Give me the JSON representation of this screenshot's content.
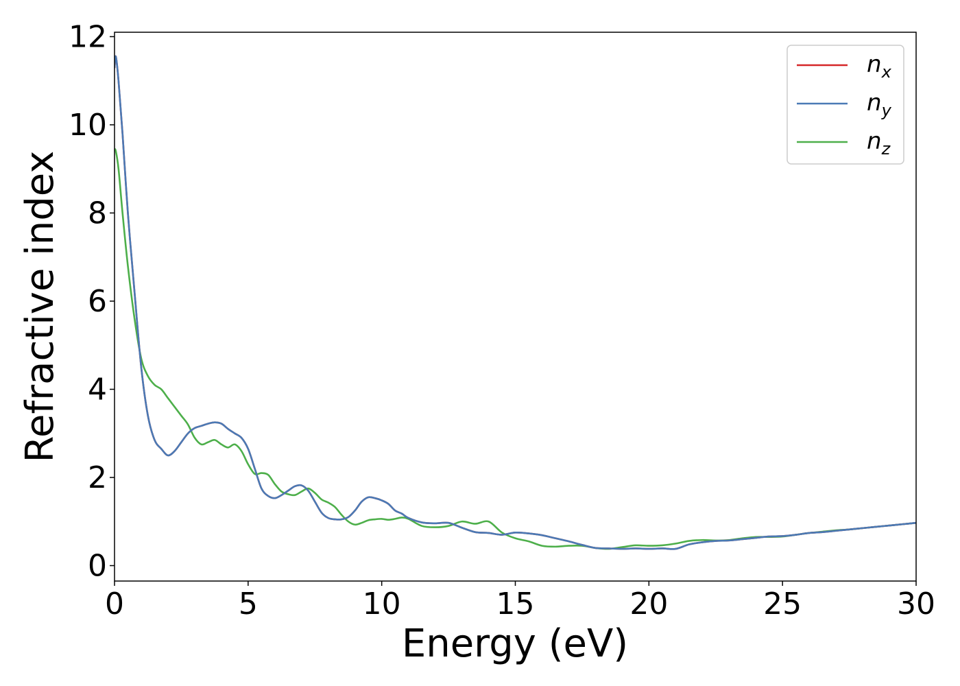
{
  "chart_data": {
    "type": "line",
    "title": "",
    "xlabel": "Energy (eV)",
    "ylabel": "Refractive index",
    "xlim": [
      0,
      30
    ],
    "ylim": [
      -0.35,
      12.1
    ],
    "x_ticks": [
      0,
      5,
      10,
      15,
      20,
      25,
      30
    ],
    "y_ticks": [
      0,
      2,
      4,
      6,
      8,
      10,
      12
    ],
    "grid": false,
    "legend_position": "top-right",
    "series": [
      {
        "name": "n_x",
        "legend_base": "n",
        "legend_sub": "x",
        "color": "#d62728",
        "x": [
          0,
          0.05,
          0.15,
          0.3,
          0.5,
          0.75,
          1.0,
          1.25,
          1.5,
          1.75,
          2.0,
          2.25,
          2.5,
          2.75,
          3.0,
          3.25,
          3.5,
          3.75,
          4.0,
          4.25,
          4.5,
          4.75,
          5.0,
          5.25,
          5.5,
          5.75,
          6.0,
          6.25,
          6.5,
          6.75,
          7.0,
          7.25,
          7.5,
          7.75,
          8.0,
          8.25,
          8.5,
          8.75,
          9.0,
          9.25,
          9.5,
          9.75,
          10.0,
          10.25,
          10.5,
          10.75,
          11.0,
          11.5,
          12.0,
          12.5,
          13.0,
          13.5,
          14.0,
          14.5,
          15.0,
          15.5,
          16.0,
          16.5,
          17.0,
          17.5,
          18.0,
          18.5,
          19.0,
          19.5,
          20.0,
          20.5,
          21.0,
          21.5,
          22.0,
          22.5,
          23.0,
          23.5,
          24.0,
          24.5,
          25.0,
          25.5,
          26.0,
          26.5,
          27.0,
          27.5,
          28.0,
          28.5,
          29.0,
          29.5,
          30.0
        ],
        "y": [
          11.3,
          11.55,
          11.0,
          9.8,
          8.0,
          6.2,
          4.5,
          3.4,
          2.85,
          2.65,
          2.5,
          2.6,
          2.8,
          3.0,
          3.12,
          3.17,
          3.22,
          3.25,
          3.22,
          3.1,
          3.0,
          2.9,
          2.65,
          2.2,
          1.75,
          1.58,
          1.53,
          1.6,
          1.7,
          1.8,
          1.82,
          1.7,
          1.45,
          1.2,
          1.08,
          1.05,
          1.05,
          1.1,
          1.25,
          1.45,
          1.55,
          1.53,
          1.48,
          1.4,
          1.25,
          1.18,
          1.08,
          0.98,
          0.96,
          0.97,
          0.86,
          0.76,
          0.74,
          0.7,
          0.75,
          0.73,
          0.69,
          0.62,
          0.55,
          0.47,
          0.4,
          0.39,
          0.38,
          0.39,
          0.38,
          0.39,
          0.38,
          0.48,
          0.53,
          0.56,
          0.57,
          0.6,
          0.63,
          0.66,
          0.67,
          0.7,
          0.74,
          0.76,
          0.79,
          0.82,
          0.85,
          0.88,
          0.91,
          0.94,
          0.97
        ]
      },
      {
        "name": "n_y",
        "legend_base": "n",
        "legend_sub": "y",
        "color": "#4a7ab5",
        "x": [
          0,
          0.05,
          0.15,
          0.3,
          0.5,
          0.75,
          1.0,
          1.25,
          1.5,
          1.75,
          2.0,
          2.25,
          2.5,
          2.75,
          3.0,
          3.25,
          3.5,
          3.75,
          4.0,
          4.25,
          4.5,
          4.75,
          5.0,
          5.25,
          5.5,
          5.75,
          6.0,
          6.25,
          6.5,
          6.75,
          7.0,
          7.25,
          7.5,
          7.75,
          8.0,
          8.25,
          8.5,
          8.75,
          9.0,
          9.25,
          9.5,
          9.75,
          10.0,
          10.25,
          10.5,
          10.75,
          11.0,
          11.5,
          12.0,
          12.5,
          13.0,
          13.5,
          14.0,
          14.5,
          15.0,
          15.5,
          16.0,
          16.5,
          17.0,
          17.5,
          18.0,
          18.5,
          19.0,
          19.5,
          20.0,
          20.5,
          21.0,
          21.5,
          22.0,
          22.5,
          23.0,
          23.5,
          24.0,
          24.5,
          25.0,
          25.5,
          26.0,
          26.5,
          27.0,
          27.5,
          28.0,
          28.5,
          29.0,
          29.5,
          30.0
        ],
        "y": [
          11.3,
          11.55,
          11.0,
          9.8,
          8.0,
          6.2,
          4.5,
          3.4,
          2.85,
          2.65,
          2.5,
          2.6,
          2.8,
          3.0,
          3.12,
          3.17,
          3.22,
          3.25,
          3.22,
          3.1,
          3.0,
          2.9,
          2.65,
          2.2,
          1.75,
          1.58,
          1.53,
          1.6,
          1.7,
          1.8,
          1.82,
          1.7,
          1.45,
          1.2,
          1.08,
          1.05,
          1.05,
          1.1,
          1.25,
          1.45,
          1.55,
          1.53,
          1.48,
          1.4,
          1.25,
          1.18,
          1.08,
          0.98,
          0.96,
          0.97,
          0.86,
          0.76,
          0.74,
          0.7,
          0.75,
          0.73,
          0.69,
          0.62,
          0.55,
          0.47,
          0.4,
          0.39,
          0.38,
          0.39,
          0.38,
          0.39,
          0.38,
          0.48,
          0.53,
          0.56,
          0.57,
          0.6,
          0.63,
          0.66,
          0.67,
          0.7,
          0.74,
          0.76,
          0.79,
          0.82,
          0.85,
          0.88,
          0.91,
          0.94,
          0.97
        ]
      },
      {
        "name": "n_z",
        "legend_base": "n",
        "legend_sub": "z",
        "color": "#4daf4a",
        "x": [
          0,
          0.05,
          0.15,
          0.3,
          0.5,
          0.75,
          1.0,
          1.25,
          1.5,
          1.75,
          2.0,
          2.25,
          2.5,
          2.75,
          3.0,
          3.25,
          3.5,
          3.75,
          4.0,
          4.25,
          4.5,
          4.75,
          5.0,
          5.25,
          5.5,
          5.75,
          6.0,
          6.25,
          6.5,
          6.75,
          7.0,
          7.25,
          7.5,
          7.75,
          8.0,
          8.25,
          8.5,
          8.75,
          9.0,
          9.25,
          9.5,
          9.75,
          10.0,
          10.25,
          10.5,
          10.75,
          11.0,
          11.5,
          12.0,
          12.5,
          13.0,
          13.5,
          14.0,
          14.5,
          15.0,
          15.5,
          16.0,
          16.5,
          17.0,
          17.5,
          18.0,
          18.5,
          19.0,
          19.5,
          20.0,
          20.5,
          21.0,
          21.5,
          22.0,
          22.5,
          23.0,
          23.5,
          24.0,
          24.5,
          25.0,
          25.5,
          26.0,
          26.5,
          27.0,
          27.5,
          28.0,
          28.5,
          29.0,
          29.5,
          30.0
        ],
        "y": [
          9.45,
          9.4,
          9.0,
          8.0,
          6.8,
          5.6,
          4.7,
          4.3,
          4.1,
          4.0,
          3.8,
          3.6,
          3.4,
          3.2,
          2.9,
          2.75,
          2.8,
          2.85,
          2.75,
          2.68,
          2.75,
          2.6,
          2.3,
          2.08,
          2.1,
          2.06,
          1.85,
          1.68,
          1.62,
          1.6,
          1.68,
          1.75,
          1.65,
          1.5,
          1.43,
          1.33,
          1.15,
          1.0,
          0.93,
          0.97,
          1.03,
          1.05,
          1.06,
          1.04,
          1.06,
          1.09,
          1.06,
          0.9,
          0.87,
          0.9,
          1.0,
          0.95,
          1.0,
          0.75,
          0.62,
          0.55,
          0.45,
          0.43,
          0.45,
          0.45,
          0.4,
          0.38,
          0.42,
          0.46,
          0.45,
          0.46,
          0.5,
          0.56,
          0.58,
          0.57,
          0.58,
          0.62,
          0.65,
          0.65,
          0.66,
          0.7,
          0.74,
          0.77,
          0.8,
          0.82,
          0.85,
          0.88,
          0.91,
          0.94,
          0.97
        ]
      }
    ]
  }
}
